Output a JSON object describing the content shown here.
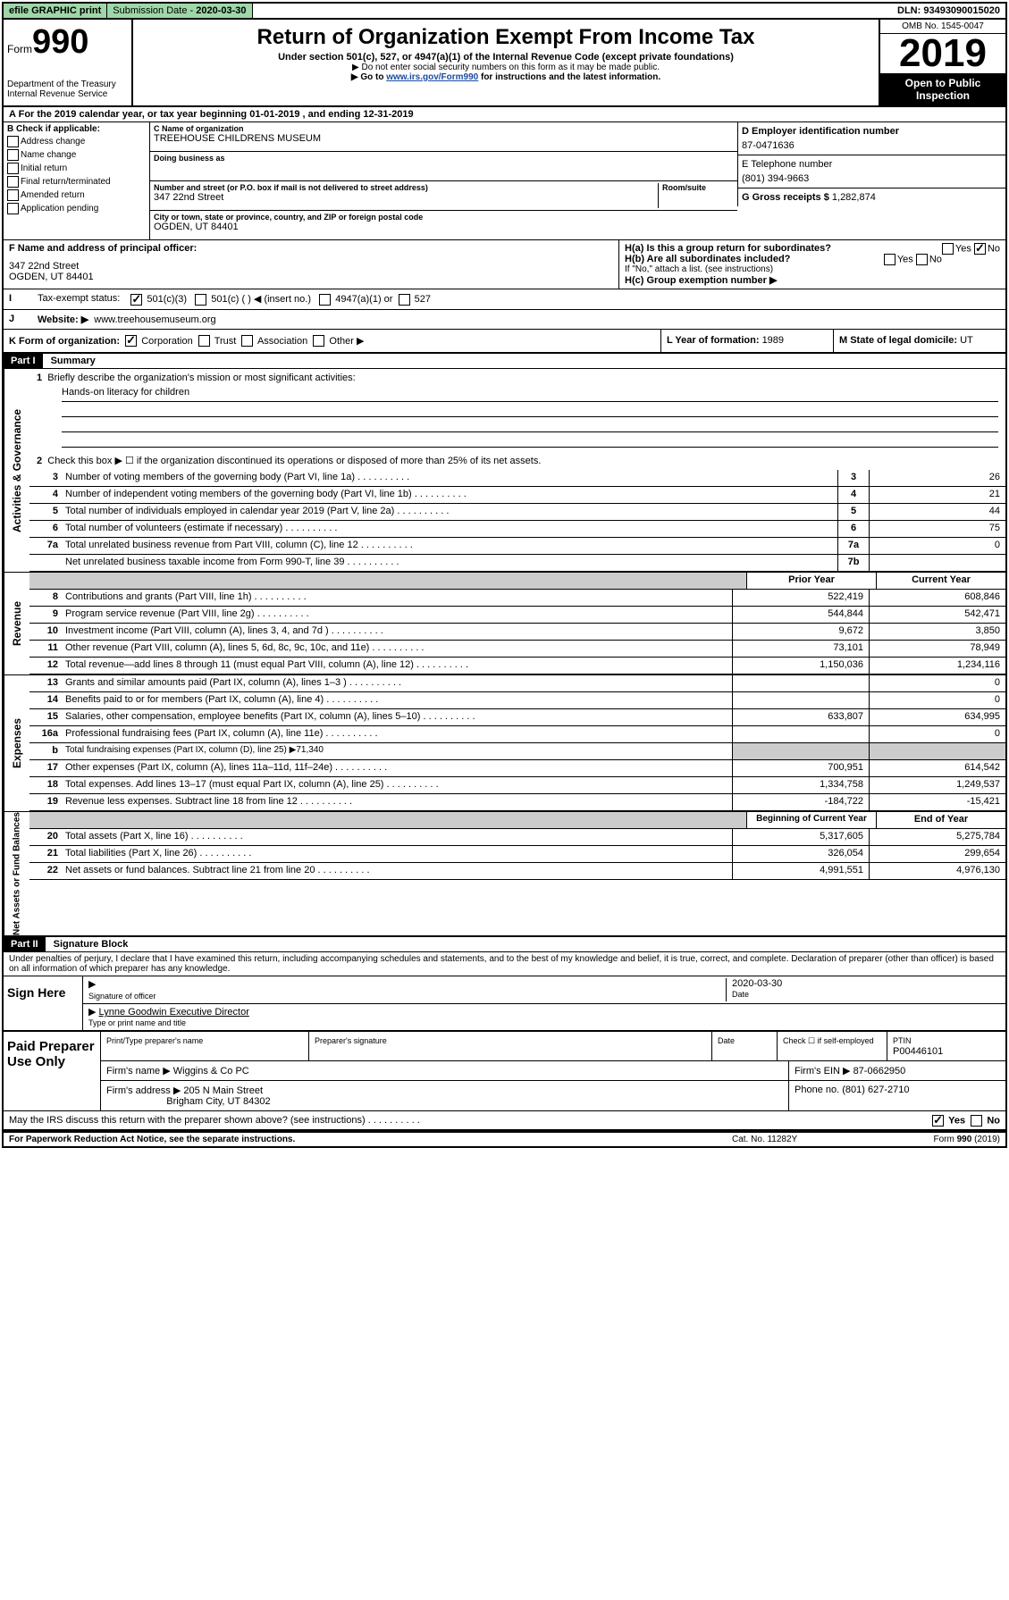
{
  "topbar": {
    "efile": "efile GRAPHIC print",
    "subdate_label": "Submission Date - ",
    "subdate": "2020-03-30",
    "dln_label": "DLN: ",
    "dln": "93493090015020"
  },
  "header": {
    "form_prefix": "Form",
    "form_number": "990",
    "dept": "Department of the Treasury\nInternal Revenue Service",
    "title": "Return of Organization Exempt From Income Tax",
    "subtitle": "Under section 501(c), 527, or 4947(a)(1) of the Internal Revenue Code (except private foundations)",
    "note1": "▶ Do not enter social security numbers on this form as it may be made public.",
    "note2_pre": "▶ Go to ",
    "note2_link": "www.irs.gov/Form990",
    "note2_post": " for instructions and the latest information.",
    "omb": "OMB No. 1545-0047",
    "year": "2019",
    "inspection": "Open to Public Inspection"
  },
  "sectionA": {
    "tax_year": "For the 2019 calendar year, or tax year beginning 01-01-2019   , and ending 12-31-2019",
    "b_label": "B Check if applicable:",
    "b_options": [
      "Address change",
      "Name change",
      "Initial return",
      "Final return/terminated",
      "Amended return",
      "Application pending"
    ],
    "c_label": "C Name of organization",
    "c_name": "TREEHOUSE CHILDRENS MUSEUM",
    "dba_label": "Doing business as",
    "addr_label": "Number and street (or P.O. box if mail is not delivered to street address)",
    "room_label": "Room/suite",
    "addr": "347 22nd Street",
    "city_label": "City or town, state or province, country, and ZIP or foreign postal code",
    "city": "OGDEN, UT  84401",
    "d_label": "D Employer identification number",
    "d_val": "87-0471636",
    "e_label": "E Telephone number",
    "e_val": "(801) 394-9663",
    "g_label": "G Gross receipts $ ",
    "g_val": "1,282,874",
    "f_label": "F  Name and address of principal officer:",
    "f_addr1": "347 22nd Street",
    "f_addr2": "OGDEN, UT  84401",
    "ha_label": "H(a)  Is this a group return for subordinates?",
    "hb_label": "H(b)  Are all subordinates included?",
    "hb_note": "If \"No,\" attach a list. (see instructions)",
    "hc_label": "H(c)  Group exemption number ▶",
    "i_label": "Tax-exempt status:",
    "i_501c3": "501(c)(3)",
    "i_501c": "501(c) (  ) ◀ (insert no.)",
    "i_4947": "4947(a)(1) or",
    "i_527": "527",
    "j_label": "Website: ▶",
    "j_val": "www.treehousemuseum.org",
    "k_label": "K Form of organization:",
    "k_corp": "Corporation",
    "k_trust": "Trust",
    "k_assoc": "Association",
    "k_other": "Other ▶",
    "l_label": "L Year of formation: ",
    "l_val": "1989",
    "m_label": "M State of legal domicile: ",
    "m_val": "UT"
  },
  "part1": {
    "header": "Part I",
    "title": "Summary",
    "governance_label": "Activities & Governance",
    "revenue_label": "Revenue",
    "expenses_label": "Expenses",
    "netassets_label": "Net Assets or Fund Balances",
    "line1_label": "Briefly describe the organization's mission or most significant activities:",
    "line1_val": "Hands-on literacy for children",
    "line2": "Check this box ▶ ☐  if the organization discontinued its operations or disposed of more than 25% of its net assets.",
    "lines_gov": [
      {
        "n": "3",
        "d": "Number of voting members of the governing body (Part VI, line 1a)",
        "box": "3",
        "v": "26"
      },
      {
        "n": "4",
        "d": "Number of independent voting members of the governing body (Part VI, line 1b)",
        "box": "4",
        "v": "21"
      },
      {
        "n": "5",
        "d": "Total number of individuals employed in calendar year 2019 (Part V, line 2a)",
        "box": "5",
        "v": "44"
      },
      {
        "n": "6",
        "d": "Total number of volunteers (estimate if necessary)",
        "box": "6",
        "v": "75"
      },
      {
        "n": "7a",
        "d": "Total unrelated business revenue from Part VIII, column (C), line 12",
        "box": "7a",
        "v": "0"
      },
      {
        "n": "",
        "d": "Net unrelated business taxable income from Form 990-T, line 39",
        "box": "7b",
        "v": ""
      }
    ],
    "prior_year": "Prior Year",
    "current_year": "Current Year",
    "lines_rev": [
      {
        "n": "8",
        "d": "Contributions and grants (Part VIII, line 1h)",
        "p": "522,419",
        "c": "608,846"
      },
      {
        "n": "9",
        "d": "Program service revenue (Part VIII, line 2g)",
        "p": "544,844",
        "c": "542,471"
      },
      {
        "n": "10",
        "d": "Investment income (Part VIII, column (A), lines 3, 4, and 7d )",
        "p": "9,672",
        "c": "3,850"
      },
      {
        "n": "11",
        "d": "Other revenue (Part VIII, column (A), lines 5, 6d, 8c, 9c, 10c, and 11e)",
        "p": "73,101",
        "c": "78,949"
      },
      {
        "n": "12",
        "d": "Total revenue—add lines 8 through 11 (must equal Part VIII, column (A), line 12)",
        "p": "1,150,036",
        "c": "1,234,116"
      }
    ],
    "lines_exp": [
      {
        "n": "13",
        "d": "Grants and similar amounts paid (Part IX, column (A), lines 1–3 )",
        "p": "",
        "c": "0"
      },
      {
        "n": "14",
        "d": "Benefits paid to or for members (Part IX, column (A), line 4)",
        "p": "",
        "c": "0"
      },
      {
        "n": "15",
        "d": "Salaries, other compensation, employee benefits (Part IX, column (A), lines 5–10)",
        "p": "633,807",
        "c": "634,995"
      },
      {
        "n": "16a",
        "d": "Professional fundraising fees (Part IX, column (A), line 11e)",
        "p": "",
        "c": "0"
      },
      {
        "n": "b",
        "d": "Total fundraising expenses (Part IX, column (D), line 25) ▶71,340",
        "p": null,
        "c": null,
        "shaded": true
      },
      {
        "n": "17",
        "d": "Other expenses (Part IX, column (A), lines 11a–11d, 11f–24e)",
        "p": "700,951",
        "c": "614,542"
      },
      {
        "n": "18",
        "d": "Total expenses. Add lines 13–17 (must equal Part IX, column (A), line 25)",
        "p": "1,334,758",
        "c": "1,249,537"
      },
      {
        "n": "19",
        "d": "Revenue less expenses. Subtract line 18 from line 12",
        "p": "-184,722",
        "c": "-15,421"
      }
    ],
    "beg_year": "Beginning of Current Year",
    "end_year": "End of Year",
    "lines_net": [
      {
        "n": "20",
        "d": "Total assets (Part X, line 16)",
        "p": "5,317,605",
        "c": "5,275,784"
      },
      {
        "n": "21",
        "d": "Total liabilities (Part X, line 26)",
        "p": "326,054",
        "c": "299,654"
      },
      {
        "n": "22",
        "d": "Net assets or fund balances. Subtract line 21 from line 20",
        "p": "4,991,551",
        "c": "4,976,130"
      }
    ]
  },
  "part2": {
    "header": "Part II",
    "title": "Signature Block",
    "perjury": "Under penalties of perjury, I declare that I have examined this return, including accompanying schedules and statements, and to the best of my knowledge and belief, it is true, correct, and complete. Declaration of preparer (other than officer) is based on all information of which preparer has any knowledge.",
    "sign_here": "Sign Here",
    "sig_officer": "Signature of officer",
    "sig_date": "2020-03-30",
    "date_label": "Date",
    "name_title": "Lynne Goodwin  Executive Director",
    "name_label": "Type or print name and title",
    "paid": "Paid Preparer Use Only",
    "prep_name_label": "Print/Type preparer's name",
    "prep_sig_label": "Preparer's signature",
    "prep_date_label": "Date",
    "self_emp": "Check ☐ if self-employed",
    "ptin_label": "PTIN",
    "ptin": "P00446101",
    "firm_name_label": "Firm's name      ▶",
    "firm_name": "Wiggins & Co PC",
    "firm_ein_label": "Firm's EIN ▶",
    "firm_ein": "87-0662950",
    "firm_addr_label": "Firm's address ▶",
    "firm_addr1": "205 N Main Street",
    "firm_addr2": "Brigham City, UT  84302",
    "phone_label": "Phone no. ",
    "phone": "(801) 627-2710",
    "discuss": "May the IRS discuss this return with the preparer shown above? (see instructions)",
    "yes": "Yes",
    "no": "No"
  },
  "footer": {
    "left": "For Paperwork Reduction Act Notice, see the separate instructions.",
    "center": "Cat. No. 11282Y",
    "right": "Form 990 (2019)"
  }
}
